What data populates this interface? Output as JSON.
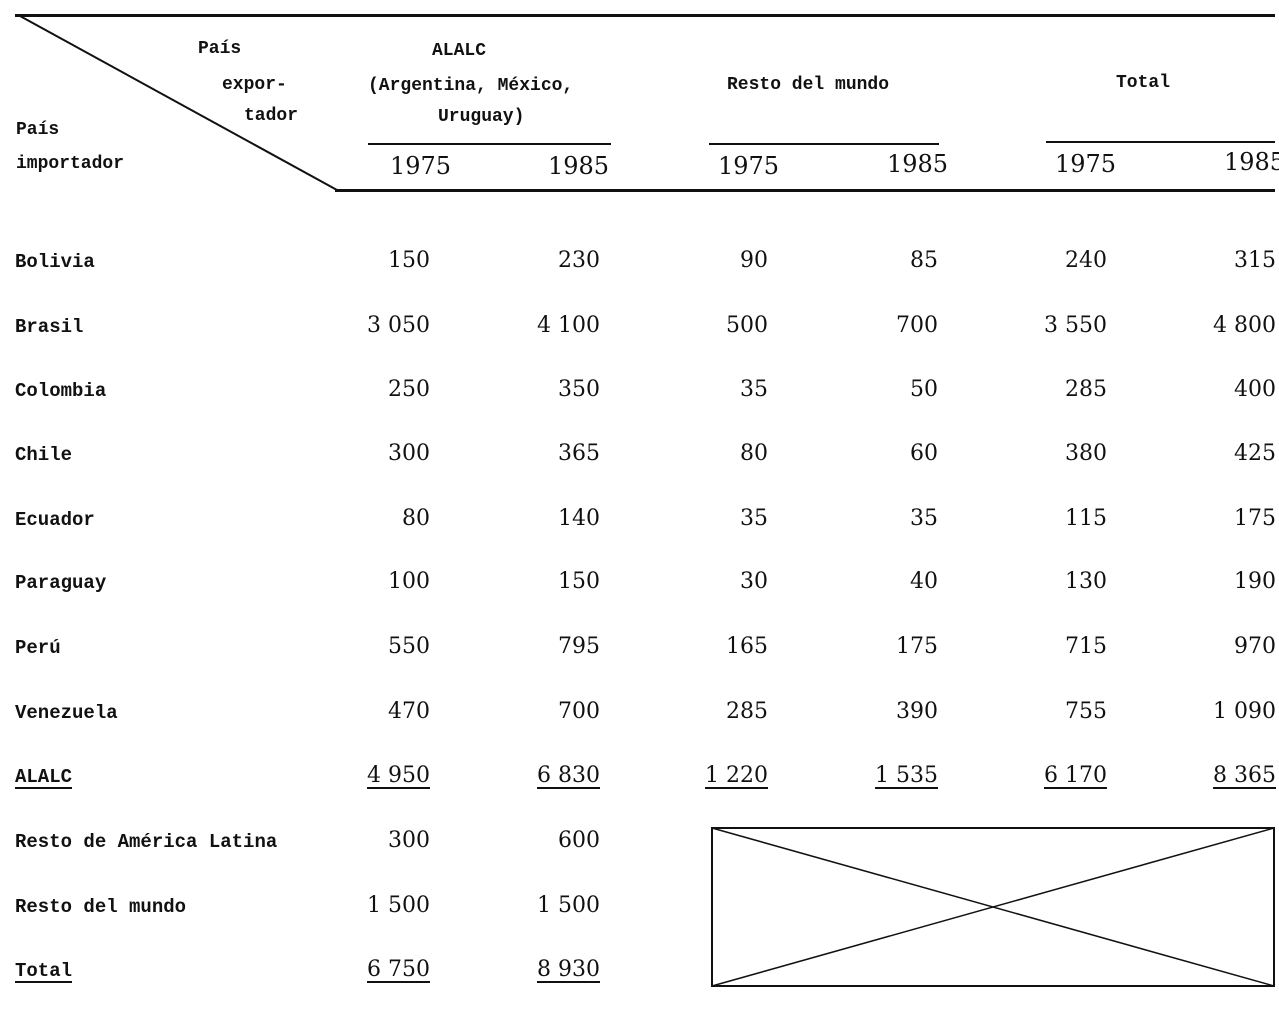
{
  "header": {
    "corner_exporter_line1": "País",
    "corner_exporter_line2": "expor-",
    "corner_exporter_line3": "tador",
    "corner_importer_line1": "País",
    "corner_importer_line2": "importador",
    "group_alalc_line1": "ALALC",
    "group_alalc_line2": "(Argentina, México,",
    "group_alalc_line3": "Uruguay)",
    "group_resto": "Resto del mundo",
    "group_total": "Total",
    "years": [
      "1975",
      "1985",
      "1975",
      "1985",
      "1975",
      "1985"
    ]
  },
  "rows": [
    {
      "label": "Bolivia",
      "values": [
        "150",
        "230",
        "90",
        "85",
        "240",
        "315"
      ]
    },
    {
      "label": "Brasil",
      "values": [
        "3 050",
        "4 100",
        "500",
        "700",
        "3 550",
        "4 800"
      ]
    },
    {
      "label": "Colombia",
      "values": [
        "250",
        "350",
        "35",
        "50",
        "285",
        "400"
      ]
    },
    {
      "label": "Chile",
      "values": [
        "300",
        "365",
        "80",
        "60",
        "380",
        "425"
      ]
    },
    {
      "label": "Ecuador",
      "values": [
        "80",
        "140",
        "35",
        "35",
        "115",
        "175"
      ]
    },
    {
      "label": "Paraguay",
      "values": [
        "100",
        "150",
        "30",
        "40",
        "130",
        "190"
      ]
    },
    {
      "label": "Perú",
      "values": [
        "550",
        "795",
        "165",
        "175",
        "715",
        "970"
      ]
    },
    {
      "label": "Venezuela",
      "values": [
        "470",
        "700",
        "285",
        "390",
        "755",
        "1 090"
      ]
    },
    {
      "label": "ALALC",
      "values": [
        "4 950",
        "6 830",
        "1 220",
        "1 535",
        "6 170",
        "8 365"
      ],
      "underlined": true
    },
    {
      "label": "Resto de América Latina",
      "values": [
        "300",
        "600"
      ]
    },
    {
      "label": "Resto del mundo",
      "values": [
        "1 500",
        "1 500"
      ]
    },
    {
      "label": "Total",
      "values": [
        "6 750",
        "8 930"
      ],
      "underlined": true
    }
  ]
}
